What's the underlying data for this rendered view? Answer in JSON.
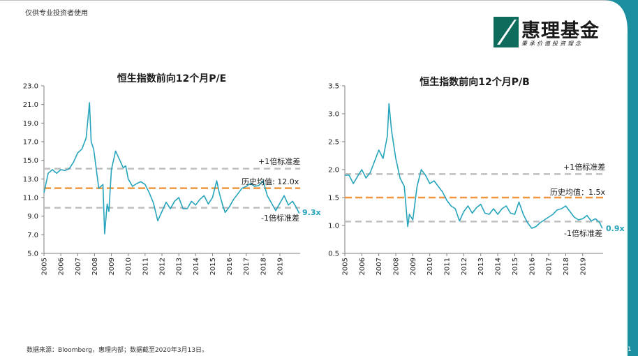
{
  "header": {
    "disclaimer": "仅供专业投资者使用"
  },
  "logo": {
    "name": "惠理基金",
    "slogan": "秉承价值投资理念"
  },
  "footer": {
    "source": "数据来源：Bloomberg，惠理内部；数据截至2020年3月13日。",
    "page_number": "1"
  },
  "colors": {
    "line": "#26a4bc",
    "mean": "#f0963c",
    "band": "#bfbfbf",
    "accent": "#1c8f9e"
  },
  "chart_data": [
    {
      "type": "line",
      "title": "恒生指数前向12个月P/E",
      "ylim": [
        5.0,
        23.0
      ],
      "y_ticks": [
        "23.0",
        "21.0",
        "19.0",
        "17.0",
        "15.0",
        "13.0",
        "11.0",
        "9.0",
        "7.0",
        "5.0"
      ],
      "x_ticks": [
        "2005",
        "2006",
        "2007",
        "2008",
        "2009",
        "2010",
        "2011",
        "2012",
        "2013",
        "2014",
        "2015",
        "2016",
        "2017",
        "2018",
        "2019"
      ],
      "grid": false,
      "series": [
        {
          "x": [
            2005.0,
            2005.25,
            2005.5,
            2005.75,
            2006.0,
            2006.25,
            2006.5,
            2006.75,
            2007.0,
            2007.25,
            2007.5,
            2007.7,
            2007.8,
            2007.95,
            2008.25,
            2008.5,
            2008.6,
            2008.75,
            2008.85,
            2009.0,
            2009.25,
            2009.5,
            2009.7,
            2009.85,
            2010.0,
            2010.25,
            2010.5,
            2010.75,
            2011.0,
            2011.25,
            2011.5,
            2011.75,
            2012.0,
            2012.25,
            2012.5,
            2012.75,
            2013.0,
            2013.25,
            2013.5,
            2013.75,
            2014.0,
            2014.25,
            2014.5,
            2014.75,
            2015.0,
            2015.25,
            2015.4,
            2015.6,
            2015.75,
            2016.0,
            2016.25,
            2016.5,
            2016.75,
            2017.0,
            2017.25,
            2017.5,
            2017.75,
            2018.0,
            2018.25,
            2018.5,
            2018.75,
            2019.0,
            2019.25,
            2019.5,
            2019.75,
            2019.95,
            2020.15
          ],
          "values": [
            11.5,
            13.6,
            14.0,
            13.6,
            14.0,
            13.9,
            14.1,
            14.8,
            15.8,
            16.2,
            17.4,
            21.2,
            17.0,
            16.2,
            12.0,
            12.4,
            7.1,
            10.3,
            9.5,
            14.0,
            16.0,
            15.0,
            14.2,
            14.4,
            13.0,
            12.2,
            12.5,
            12.7,
            12.4,
            11.5,
            10.4,
            8.5,
            9.5,
            10.5,
            9.8,
            10.6,
            11.0,
            9.8,
            9.8,
            10.6,
            10.2,
            10.8,
            11.2,
            10.3,
            11.0,
            12.8,
            11.5,
            10.2,
            9.4,
            10.0,
            10.8,
            11.4,
            12.0,
            12.2,
            12.5,
            12.2,
            12.3,
            12.8,
            11.2,
            10.4,
            9.6,
            10.4,
            11.2,
            10.2,
            10.6,
            10.0,
            9.3
          ]
        }
      ],
      "mean": 12.0,
      "plus_1sd": 14.1,
      "minus_1sd": 9.9,
      "annotations": {
        "plus": "+1倍标准差",
        "mean": "历史均值: 12.0x",
        "minus": "-1倍标准差",
        "last": "9.3x"
      }
    },
    {
      "type": "line",
      "title": "恒生指数前向12个月P/B",
      "ylim": [
        0.5,
        3.5
      ],
      "y_ticks": [
        "3.5",
        "3.0",
        "2.5",
        "2.0",
        "1.5",
        "1.0",
        "0.5"
      ],
      "x_ticks": [
        "2005",
        "2006",
        "2007",
        "2008",
        "2009",
        "2010",
        "2011",
        "2012",
        "2013",
        "2014",
        "2015",
        "2016",
        "2017",
        "2018",
        "2019"
      ],
      "grid": false,
      "series": [
        {
          "x": [
            2005.0,
            2005.25,
            2005.5,
            2005.75,
            2006.0,
            2006.25,
            2006.5,
            2006.75,
            2007.0,
            2007.25,
            2007.5,
            2007.6,
            2007.75,
            2008.0,
            2008.25,
            2008.5,
            2008.7,
            2008.8,
            2009.0,
            2009.25,
            2009.5,
            2009.75,
            2010.0,
            2010.25,
            2010.5,
            2010.75,
            2011.0,
            2011.25,
            2011.5,
            2011.75,
            2012.0,
            2012.25,
            2012.5,
            2012.75,
            2013.0,
            2013.25,
            2013.5,
            2013.75,
            2014.0,
            2014.25,
            2014.5,
            2014.75,
            2015.0,
            2015.25,
            2015.5,
            2015.75,
            2016.0,
            2016.25,
            2016.5,
            2016.75,
            2017.0,
            2017.25,
            2017.5,
            2017.75,
            2018.0,
            2018.25,
            2018.5,
            2018.75,
            2019.0,
            2019.25,
            2019.5,
            2019.75,
            2020.0,
            2020.15
          ],
          "values": [
            1.9,
            1.9,
            1.75,
            1.88,
            2.0,
            1.85,
            1.95,
            2.15,
            2.35,
            2.2,
            2.6,
            3.18,
            2.7,
            2.2,
            1.85,
            1.7,
            0.98,
            1.2,
            1.1,
            1.7,
            2.0,
            1.9,
            1.75,
            1.8,
            1.7,
            1.6,
            1.45,
            1.35,
            1.3,
            1.08,
            1.25,
            1.35,
            1.22,
            1.32,
            1.38,
            1.22,
            1.2,
            1.3,
            1.2,
            1.3,
            1.35,
            1.22,
            1.2,
            1.42,
            1.2,
            1.05,
            0.95,
            0.98,
            1.05,
            1.1,
            1.15,
            1.2,
            1.28,
            1.3,
            1.35,
            1.25,
            1.15,
            1.1,
            1.12,
            1.18,
            1.08,
            1.12,
            1.05,
            0.95
          ]
        }
      ],
      "mean": 1.5,
      "plus_1sd": 1.92,
      "minus_1sd": 1.07,
      "annotations": {
        "plus": "+1倍标准差",
        "mean": "历史均值：1.5x",
        "minus": "-1倍标准差",
        "last": "0.9x"
      }
    }
  ]
}
